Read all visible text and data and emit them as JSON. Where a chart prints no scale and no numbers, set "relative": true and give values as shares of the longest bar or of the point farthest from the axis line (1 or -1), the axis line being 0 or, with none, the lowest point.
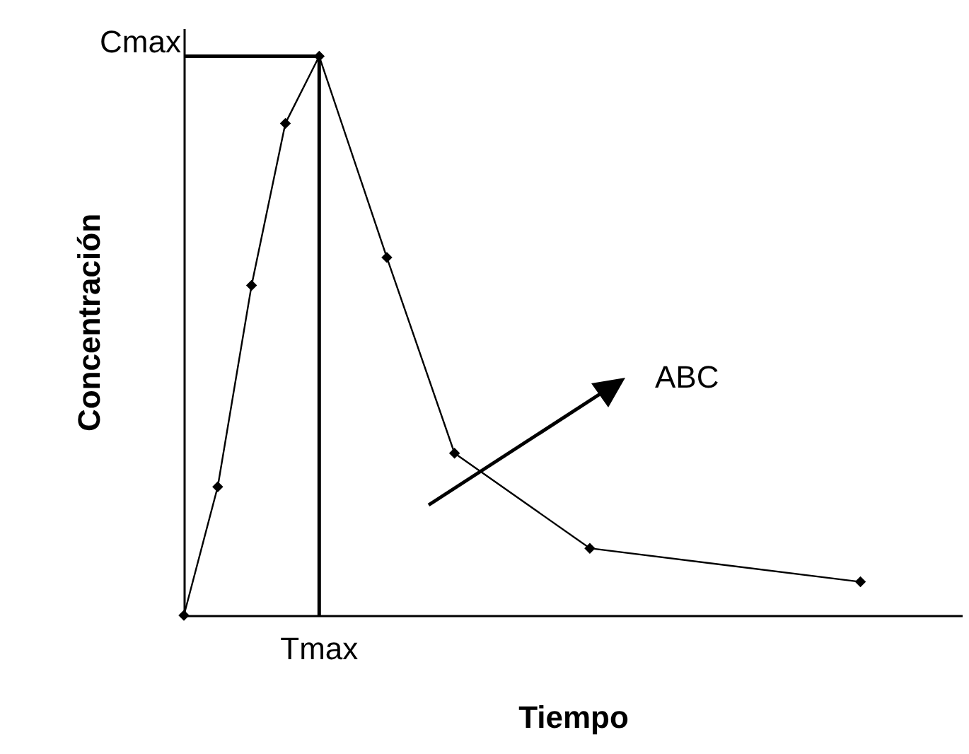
{
  "chart_data": {
    "type": "line",
    "relative": true,
    "xlabel": "Tiempo",
    "ylabel": "Concentración",
    "categories": [
      null,
      null,
      null,
      null,
      null,
      null,
      null,
      null,
      null,
      null,
      null,
      null,
      null,
      null,
      null,
      null,
      null,
      null,
      null,
      null,
      null,
      null,
      null
    ],
    "series": [
      {
        "color": "#000000",
        "values": [
          0,
          0.23,
          0.59,
          0.88,
          1,
          null,
          0.64,
          null,
          0.29,
          null,
          null,
          null,
          0.12,
          null,
          null,
          null,
          null,
          null,
          null,
          null,
          0.06,
          null,
          null
        ]
      }
    ],
    "marker": "diamond",
    "tick_labels": false,
    "grid": false,
    "ref_lines": [
      {
        "axis": "x",
        "label": "Tmax"
      },
      {
        "axis": "y",
        "value": 1,
        "label": "Cmax"
      }
    ],
    "annotations": [
      "ABC"
    ]
  }
}
